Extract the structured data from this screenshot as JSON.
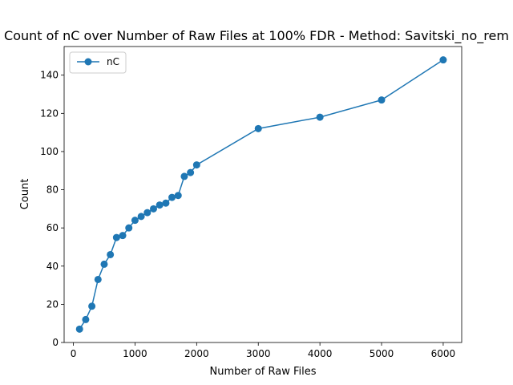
{
  "chart_data": {
    "type": "line",
    "title": "Count of nC over Number of Raw Files at 100% FDR - Method: Savitski_no_rem",
    "xlabel": "Number of Raw Files",
    "ylabel": "Count",
    "xlim": [
      -150,
      6300
    ],
    "ylim": [
      0,
      155
    ],
    "xticks": [
      0,
      1000,
      2000,
      3000,
      4000,
      5000,
      6000
    ],
    "yticks": [
      0,
      20,
      40,
      60,
      80,
      100,
      120,
      140
    ],
    "grid": false,
    "legend": {
      "placement": "top-left",
      "entries": [
        "nC"
      ]
    },
    "series": [
      {
        "name": "nC",
        "color": "#1f77b4",
        "marker": "circle",
        "x": [
          100,
          200,
          300,
          400,
          500,
          600,
          700,
          800,
          900,
          1000,
          1100,
          1200,
          1300,
          1400,
          1500,
          1600,
          1700,
          1800,
          1900,
          2000,
          3000,
          4000,
          5000,
          6000
        ],
        "y": [
          7,
          12,
          19,
          33,
          41,
          46,
          55,
          56,
          60,
          64,
          66,
          68,
          70,
          72,
          73,
          76,
          77,
          87,
          89,
          93,
          112,
          118,
          127,
          148
        ]
      }
    ]
  }
}
